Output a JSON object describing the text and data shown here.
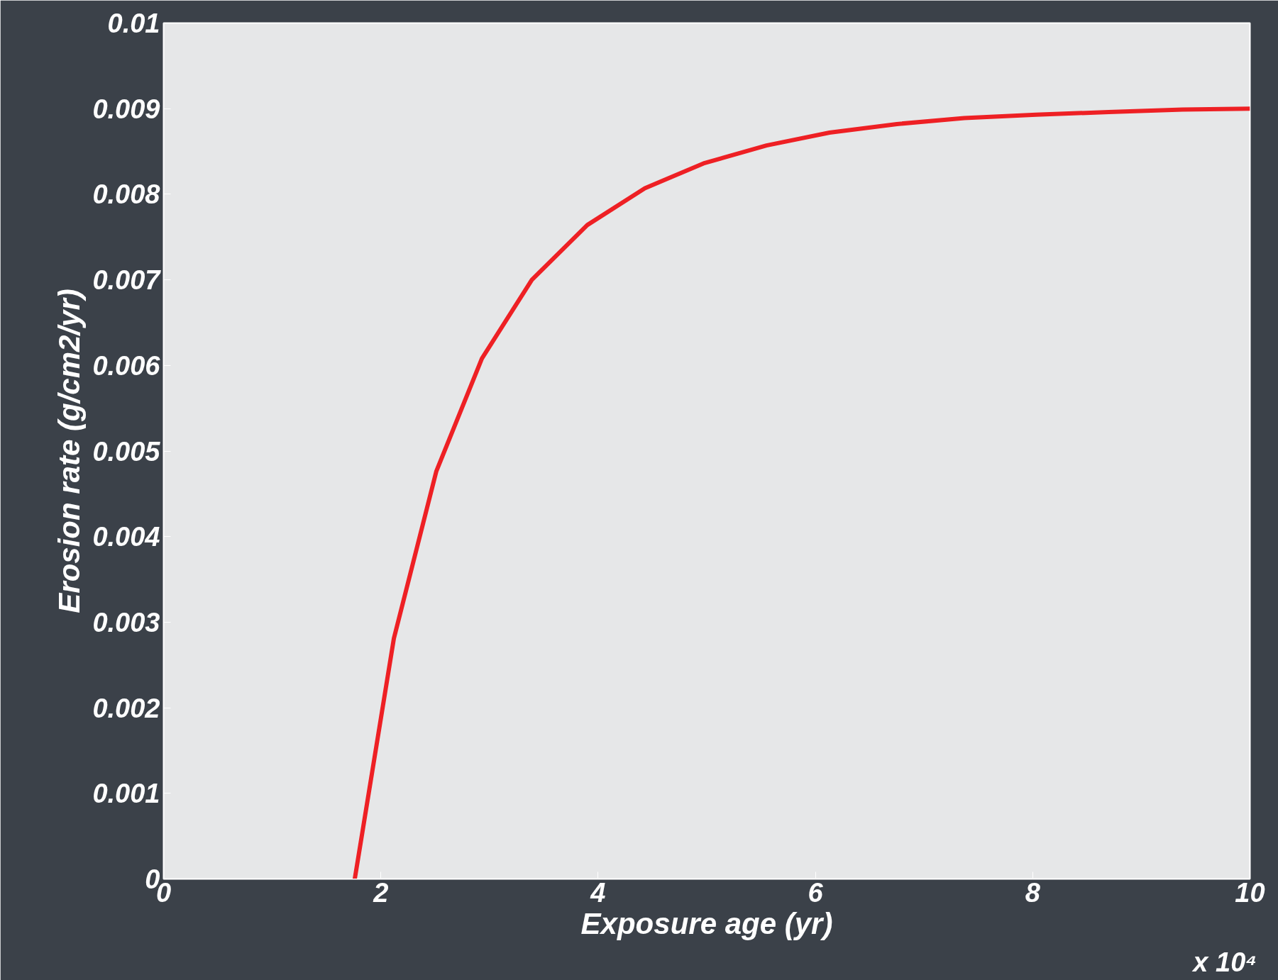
{
  "chart_data": {
    "type": "line",
    "xlabel": "Exposure age (yr)",
    "ylabel": "Erosion rate (g/cm2/yr)",
    "annotations": [
      "x 10⁴"
    ],
    "x": [
      1.76,
      2.12,
      2.51,
      2.93,
      3.39,
      3.9,
      4.43,
      4.97,
      5.55,
      6.13,
      6.75,
      7.37,
      8.03,
      8.7,
      9.38,
      10
    ],
    "series": [
      {
        "color": "#ee2024",
        "values": [
          0,
          0.00281,
          0.00476,
          0.00608,
          0.007,
          0.00764,
          0.00807,
          0.00836,
          0.00857,
          0.00872,
          0.00882,
          0.00889,
          0.00893,
          0.00896,
          0.00899,
          0.009
        ]
      }
    ],
    "xlim": [
      0,
      10
    ],
    "xticks": [
      0,
      2,
      4,
      6,
      8,
      10
    ],
    "ylim": [
      0,
      0.01
    ],
    "yticks": [
      0,
      0.001,
      0.002,
      0.003,
      0.004,
      0.005,
      0.006,
      0.007,
      0.008,
      0.009,
      0.01
    ],
    "grid": false,
    "marker": "none",
    "line_style": "solid"
  }
}
